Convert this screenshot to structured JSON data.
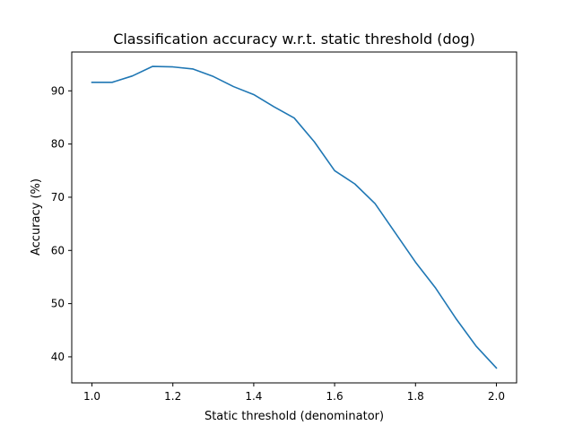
{
  "chart_data": {
    "type": "line",
    "title": "Classification accuracy w.r.t. static threshold (dog)",
    "xlabel": "Static threshold (denominator)",
    "ylabel": "Accuracy (%)",
    "xlim": [
      0.95,
      2.05
    ],
    "ylim": [
      35.1,
      97.3
    ],
    "xticks": [
      1.0,
      1.2,
      1.4,
      1.6,
      1.8,
      2.0
    ],
    "xtick_labels": [
      "1.0",
      "1.2",
      "1.4",
      "1.6",
      "1.8",
      "2.0"
    ],
    "yticks": [
      40,
      50,
      60,
      70,
      80,
      90
    ],
    "ytick_labels": [
      "40",
      "50",
      "60",
      "70",
      "80",
      "90"
    ],
    "grid": false,
    "legend": "none",
    "series": [
      {
        "color": "#1f77b4",
        "x": [
          1.0,
          1.05,
          1.1,
          1.15,
          1.2,
          1.25,
          1.3,
          1.35,
          1.4,
          1.45,
          1.5,
          1.55,
          1.6,
          1.65,
          1.7,
          1.75,
          1.8,
          1.85,
          1.9,
          1.95,
          2.0
        ],
        "y": [
          91.6,
          91.6,
          92.8,
          94.6,
          94.5,
          94.1,
          92.7,
          90.8,
          89.3,
          87.0,
          84.9,
          80.4,
          75.0,
          72.5,
          68.8,
          63.3,
          57.8,
          52.9,
          47.2,
          42.0,
          37.9
        ]
      }
    ]
  }
}
